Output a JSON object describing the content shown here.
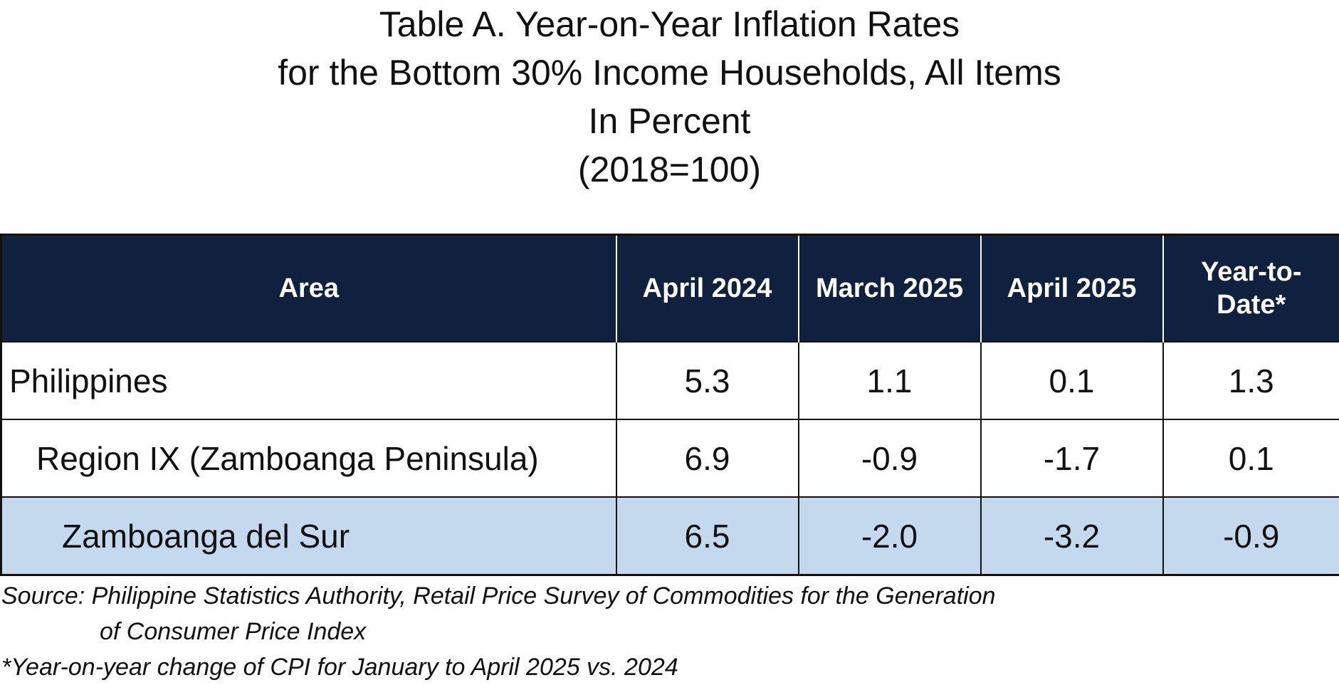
{
  "title": {
    "line1": "Table A.  Year-on-Year Inflation Rates",
    "line2": "for the Bottom 30% Income Households, All Items",
    "line3": "In Percent",
    "line4": "(2018=100)"
  },
  "table": {
    "headers": {
      "area": "Area",
      "col1": "April 2024",
      "col2": "March 2025",
      "col3": "April 2025",
      "col4_line1": "Year-to-",
      "col4_line2": "Date*"
    },
    "rows": [
      {
        "area": "Philippines",
        "april_2024": "5.3",
        "march_2025": "1.1",
        "april_2025": "0.1",
        "ytd": "1.3"
      },
      {
        "area": "Region IX (Zamboanga Peninsula)",
        "april_2024": "6.9",
        "march_2025": "-0.9",
        "april_2025": "-1.7",
        "ytd": "0.1"
      },
      {
        "area": "Zamboanga del Sur",
        "april_2024": "6.5",
        "march_2025": "-2.0",
        "april_2025": "-3.2",
        "ytd": "-0.9"
      }
    ],
    "header_color": "#0f213f",
    "highlight_color": "#c5d9ee"
  },
  "footnotes": {
    "source_line1": "Source: Philippine Statistics Authority, Retail Price Survey of Commodities for the Generation",
    "source_line2": "of Consumer Price Index",
    "note": "*Year-on-year change of CPI for January to April 2025 vs. 2024"
  }
}
